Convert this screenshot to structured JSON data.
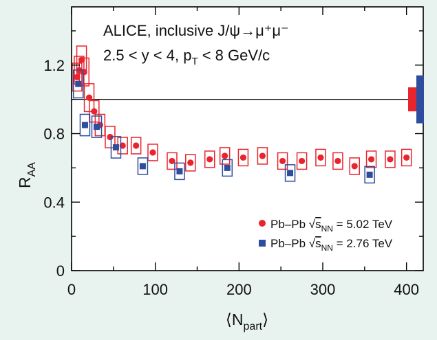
{
  "chart_data": {
    "type": "scatter",
    "annotation_line1": "ALICE, inclusive J/ψ→μ⁺μ⁻",
    "annotation_line2": "2.5 < y < 4, p",
    "annotation_line2_sub": "T",
    "annotation_line2_tail": " < 8 GeV/c",
    "xlabel": "⟨N",
    "xlabel_sub": "part",
    "xlabel_tail": "⟩",
    "ylabel": "R",
    "ylabel_sub": "AA",
    "xlim": [
      0,
      420
    ],
    "ylim": [
      0,
      1.54
    ],
    "xticks": [
      0,
      100,
      200,
      300,
      400
    ],
    "yticks": [
      0,
      0.4,
      0.8,
      1.2
    ],
    "ytick_labels": [
      "0",
      "0.4",
      "0.8",
      "1.2"
    ],
    "reference_line": 1.0,
    "legend_position": "bottom-right",
    "global_uncertainty": [
      {
        "color": "#e8242c",
        "low": 0.93,
        "high": 1.07
      },
      {
        "color": "#2e4d9e",
        "low": 0.86,
        "high": 1.14
      }
    ],
    "series": [
      {
        "legend_prefix": "Pb–Pb ",
        "legend_sqrt": "s",
        "legend_sub": "NN",
        "legend_tail": " = 5.02 TeV",
        "color": "#e8242c",
        "marker": "circle",
        "points": [
          {
            "x": 380.5,
            "y": 0.65
          },
          {
            "x": 400.0,
            "y": 0.66
          },
          {
            "x": 358.0,
            "y": 0.65
          },
          {
            "x": 338.0,
            "y": 0.61
          },
          {
            "x": 318.0,
            "y": 0.64
          },
          {
            "x": 297.5,
            "y": 0.66
          },
          {
            "x": 275.0,
            "y": 0.64
          },
          {
            "x": 252.0,
            "y": 0.64
          },
          {
            "x": 228.0,
            "y": 0.67
          },
          {
            "x": 205.0,
            "y": 0.66
          },
          {
            "x": 183.0,
            "y": 0.67
          },
          {
            "x": 165.0,
            "y": 0.65
          },
          {
            "x": 142.0,
            "y": 0.63
          },
          {
            "x": 120.0,
            "y": 0.64
          },
          {
            "x": 97.0,
            "y": 0.69
          },
          {
            "x": 77.0,
            "y": 0.73
          },
          {
            "x": 61.0,
            "y": 0.73
          },
          {
            "x": 46.0,
            "y": 0.78
          },
          {
            "x": 34.0,
            "y": 0.85
          },
          {
            "x": 27.0,
            "y": 0.93
          },
          {
            "x": 21.0,
            "y": 1.01
          },
          {
            "x": 15.0,
            "y": 1.16
          },
          {
            "x": 12.0,
            "y": 1.23
          },
          {
            "x": 9.0,
            "y": 1.17
          },
          {
            "x": 6.5,
            "y": 1.13
          }
        ]
      },
      {
        "legend_prefix": "Pb–Pb ",
        "legend_sqrt": "s",
        "legend_sub": "NN",
        "legend_tail": " = 2.76 TeV",
        "color": "#2e4d9e",
        "marker": "square",
        "points": [
          {
            "x": 356.0,
            "y": 0.56
          },
          {
            "x": 261.0,
            "y": 0.57
          },
          {
            "x": 186.0,
            "y": 0.6
          },
          {
            "x": 129.0,
            "y": 0.58
          },
          {
            "x": 85.0,
            "y": 0.61
          },
          {
            "x": 53.0,
            "y": 0.72
          },
          {
            "x": 30.0,
            "y": 0.84
          },
          {
            "x": 16.0,
            "y": 0.85
          },
          {
            "x": 8.0,
            "y": 1.09
          }
        ]
      }
    ]
  }
}
